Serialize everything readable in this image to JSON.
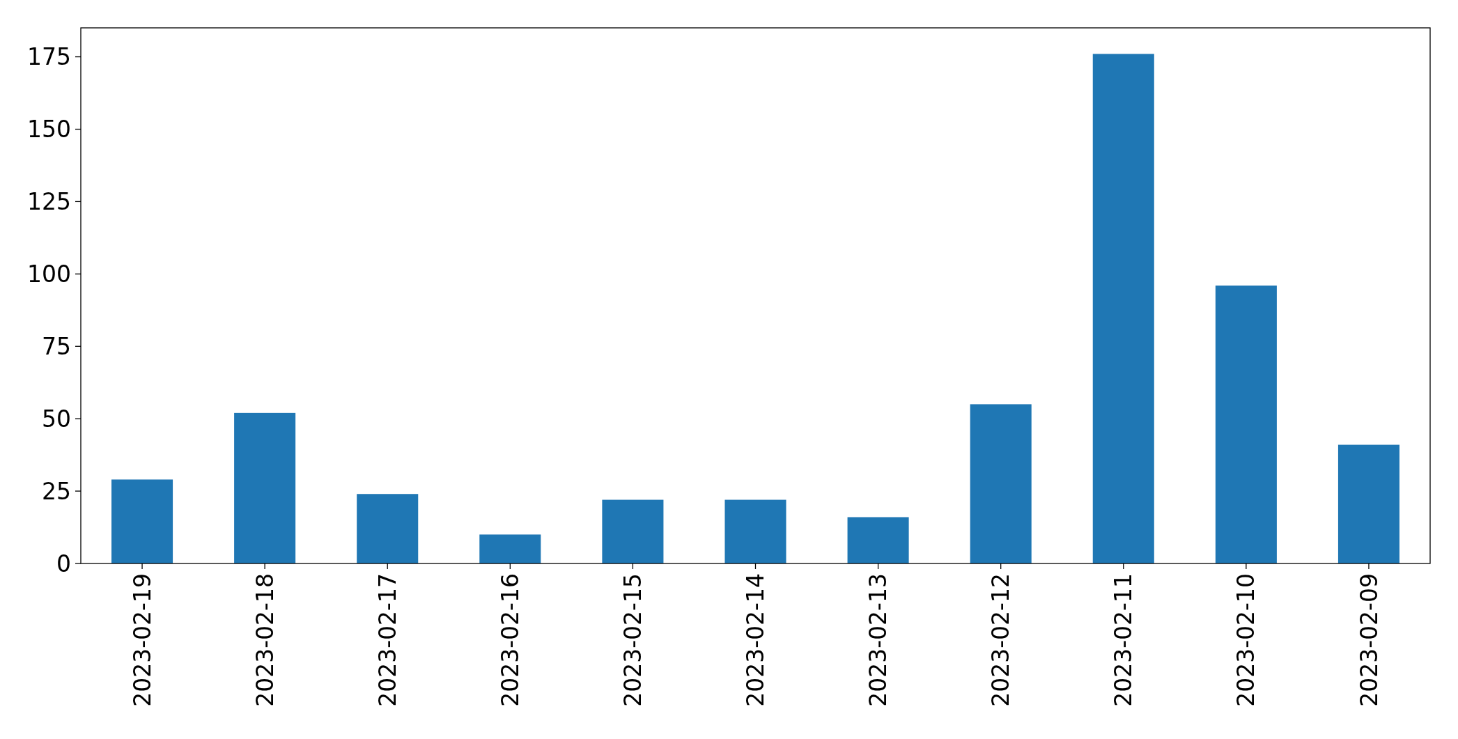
{
  "chart_data": {
    "type": "bar",
    "categories": [
      "2023-02-19",
      "2023-02-18",
      "2023-02-17",
      "2023-02-16",
      "2023-02-15",
      "2023-02-14",
      "2023-02-13",
      "2023-02-12",
      "2023-02-11",
      "2023-02-10",
      "2023-02-09"
    ],
    "values": [
      29,
      52,
      24,
      10,
      22,
      22,
      16,
      55,
      176,
      96,
      41
    ],
    "color": "#1f77b4",
    "ylim": [
      0,
      185
    ],
    "yticks": [
      0,
      25,
      50,
      75,
      100,
      125,
      150,
      175
    ],
    "grid": false
  }
}
